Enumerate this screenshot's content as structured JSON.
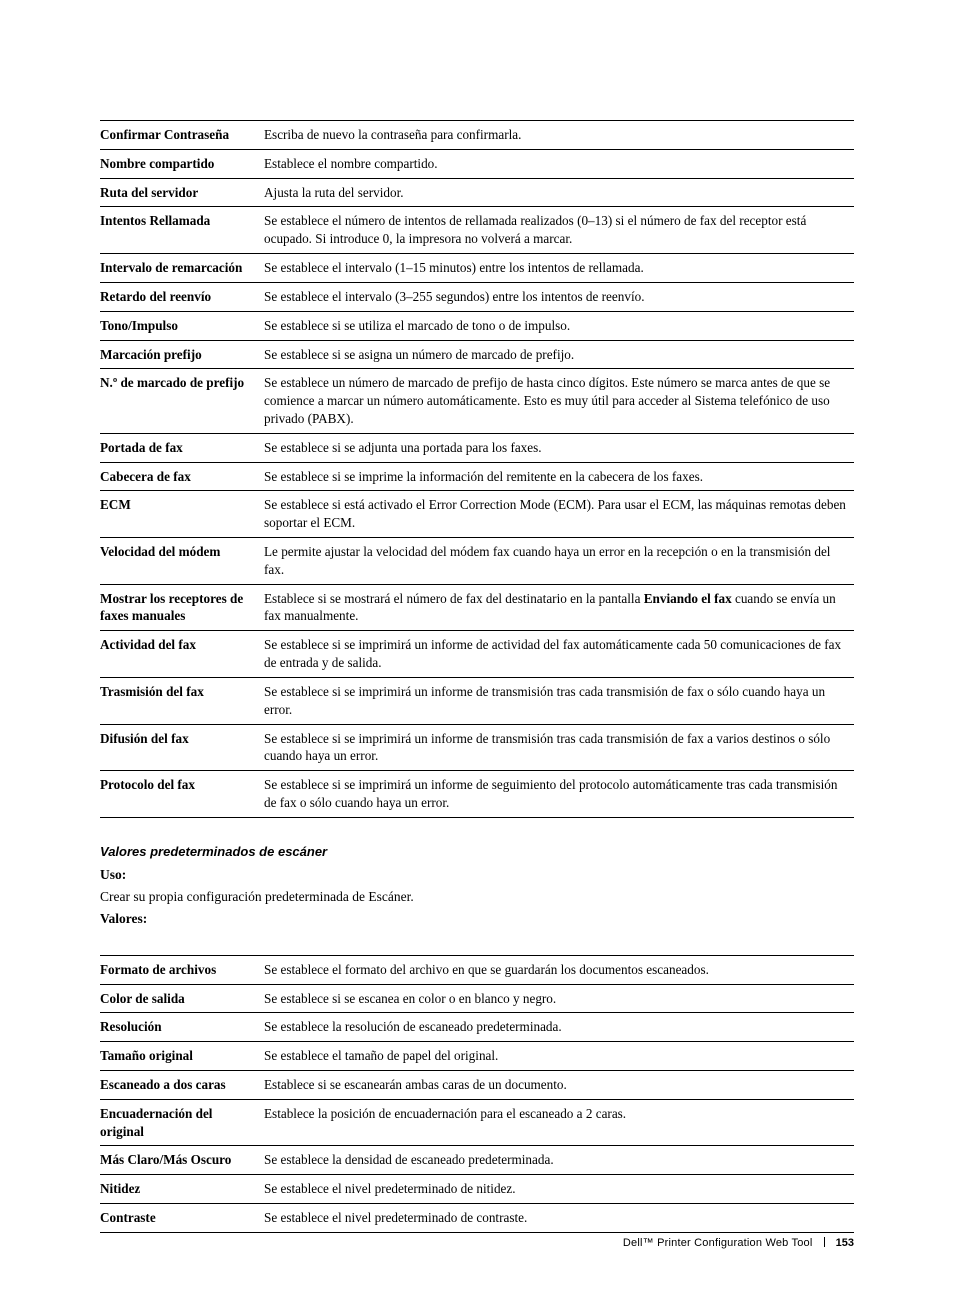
{
  "table1": {
    "rows": [
      {
        "label": "Confirmar Contraseña",
        "value": "Escriba de nuevo la contraseña para confirmarla."
      },
      {
        "label": "Nombre compartido",
        "value": "Establece el nombre compartido."
      },
      {
        "label": "Ruta del servidor",
        "value": "Ajusta la ruta del servidor."
      },
      {
        "label": "Intentos Rellamada",
        "value": "Se establece el número de intentos de rellamada realizados (0–13) si el número de fax del receptor está ocupado. Si introduce 0, la impresora no volverá a marcar."
      },
      {
        "label": "Intervalo de remarcación",
        "value": "Se establece el intervalo (1–15 minutos) entre los intentos de rellamada."
      },
      {
        "label": "Retardo del reenvío",
        "value": "Se establece el intervalo (3–255 segundos) entre los intentos de reenvío."
      },
      {
        "label": "Tono/Impulso",
        "value": "Se establece si se utiliza el marcado de tono o de impulso."
      },
      {
        "label": "Marcación prefijo",
        "value": "Se establece si se asigna un número de marcado de prefijo."
      },
      {
        "label": "N.º de marcado de prefijo",
        "value": "Se establece un número de marcado de prefijo de hasta cinco dígitos. Este número se marca antes de que se comience a marcar un número automáticamente. Esto es muy útil para acceder al Sistema telefónico de uso privado (PABX)."
      },
      {
        "label": "Portada de fax",
        "value": "Se establece si se adjunta una portada para los faxes."
      },
      {
        "label": "Cabecera de fax",
        "value": "Se establece si se imprime la información del remitente en la cabecera de los faxes."
      },
      {
        "label": "ECM",
        "value": "Se establece si está activado el Error Correction Mode (ECM). Para usar el ECM, las máquinas remotas deben soportar el ECM."
      },
      {
        "label": "Velocidad del módem",
        "value": "Le permite ajustar la velocidad del módem fax cuando haya un error en la recepción o en la transmisión del fax."
      },
      {
        "label": "Mostrar los receptores de faxes manuales",
        "value_pre": "Establece si se mostrará el número de fax del destinatario en la pantalla ",
        "value_bold": "Enviando el fax",
        "value_post": " cuando se envía un fax manualmente."
      },
      {
        "label": "Actividad del fax",
        "value": "Se establece si se imprimirá un informe de actividad del fax automáticamente cada 50 comunicaciones de fax de entrada y de salida."
      },
      {
        "label": "Trasmisión del fax",
        "value": "Se establece si se imprimirá un informe de transmisión tras cada transmisión de fax o sólo cuando haya un error."
      },
      {
        "label": "Difusión del fax",
        "value": "Se establece si se imprimirá un informe de transmisión tras cada transmisión de fax a varios destinos o sólo cuando haya un error."
      },
      {
        "label": "Protocolo del fax",
        "value": "Se establece si se imprimirá un informe de seguimiento del protocolo automáticamente tras cada transmisión de fax o sólo cuando haya un error."
      }
    ]
  },
  "section2": {
    "heading": "Valores predeterminados de escáner",
    "uso_label": "Uso:",
    "uso_text": "Crear su propia configuración predeterminada de Escáner.",
    "valores_label": "Valores:"
  },
  "table2": {
    "rows": [
      {
        "label": "Formato de archivos",
        "value": "Se establece el formato del archivo en que se guardarán los documentos escaneados."
      },
      {
        "label": "Color de salida",
        "value": "Se establece si se escanea en color o en blanco y negro."
      },
      {
        "label": "Resolución",
        "value": "Se establece la resolución de escaneado predeterminada."
      },
      {
        "label": "Tamaño original",
        "value": "Se establece el tamaño de papel del original."
      },
      {
        "label": "Escaneado a dos caras",
        "value": "Establece si se escanearán ambas caras de un documento."
      },
      {
        "label": "Encuadernación del original",
        "value": "Establece la posición de encuadernación para el escaneado a 2 caras."
      },
      {
        "label": "Más Claro/Más Oscuro",
        "value": "Se establece la densidad de escaneado predeterminada."
      },
      {
        "label": "Nitidez",
        "value": "Se establece el nivel predeterminado de nitidez."
      },
      {
        "label": "Contraste",
        "value": "Se establece el nivel predeterminado de contraste."
      }
    ]
  },
  "footer": {
    "title": "Dell™ Printer Configuration Web Tool",
    "page": "153"
  }
}
